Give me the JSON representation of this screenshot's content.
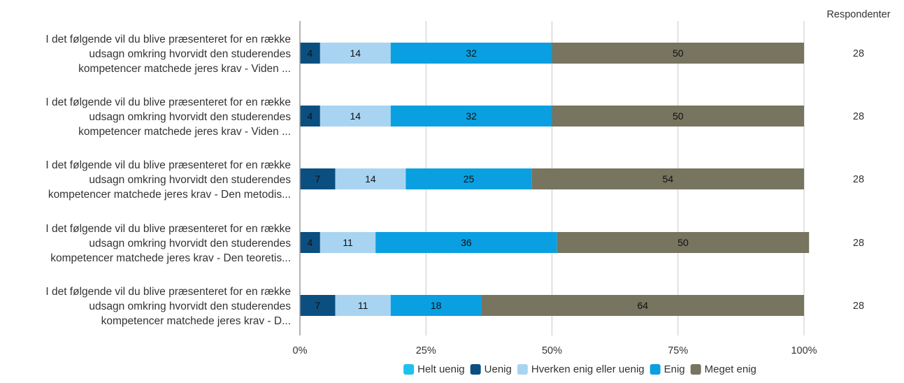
{
  "chart_data": {
    "type": "bar",
    "orientation": "horizontal",
    "stacked": "percent",
    "title": "",
    "xlabel": "",
    "ylabel": "",
    "xlim": [
      0,
      100
    ],
    "x_ticks": [
      "0%",
      "25%",
      "50%",
      "75%",
      "100%"
    ],
    "grid": true,
    "legend_position": "bottom",
    "respondents_header": "Respondenter",
    "categories": [
      [
        "I det følgende vil du blive præsenteret for en række",
        "udsagn omkring hvorvidt den studerendes",
        "kompetencer matchede jeres krav - Viden ..."
      ],
      [
        "I det følgende vil du blive præsenteret for en række",
        "udsagn omkring hvorvidt den studerendes",
        "kompetencer matchede jeres krav - Viden ..."
      ],
      [
        "I det følgende vil du blive præsenteret for en række",
        "udsagn omkring hvorvidt den studerendes",
        "kompetencer matchede jeres krav - Den metodis..."
      ],
      [
        "I det følgende vil du blive præsenteret for en række",
        "udsagn omkring hvorvidt den studerendes",
        "kompetencer matchede jeres krav - Den teoretis..."
      ],
      [
        "I det følgende vil du blive præsenteret for en række",
        "udsagn omkring hvorvidt den studerendes",
        "kompetencer matchede jeres krav - D..."
      ]
    ],
    "respondents": [
      28,
      28,
      28,
      28,
      28
    ],
    "series": [
      {
        "name": "Helt uenig",
        "color": "#1ec0f0",
        "values": [
          0,
          0,
          0,
          0,
          0
        ]
      },
      {
        "name": "Uenig",
        "color": "#0b4f80",
        "values": [
          4,
          4,
          7,
          4,
          7
        ]
      },
      {
        "name": "Hverken enig eller uenig",
        "color": "#a8d4f2",
        "values": [
          14,
          14,
          14,
          11,
          11
        ]
      },
      {
        "name": "Enig",
        "color": "#0a9fe0",
        "values": [
          32,
          32,
          25,
          36,
          18
        ]
      },
      {
        "name": "Meget enig",
        "color": "#77745f",
        "values": [
          50,
          50,
          54,
          50,
          64
        ]
      }
    ]
  }
}
